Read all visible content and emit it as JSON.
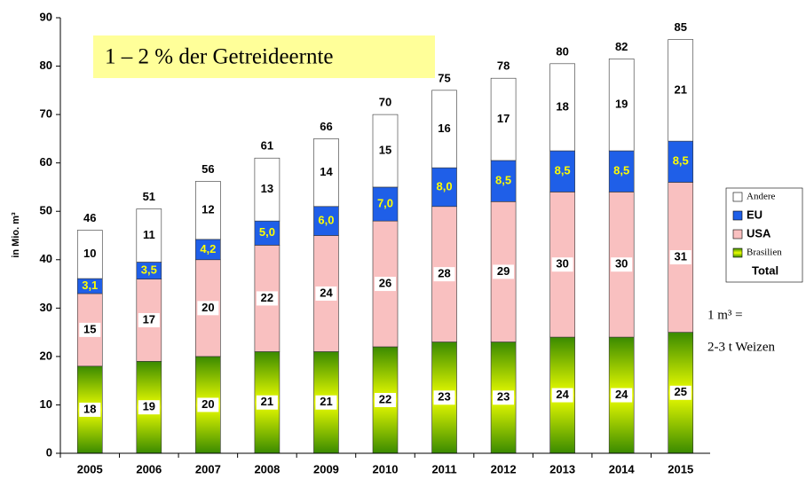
{
  "chart_data": {
    "type": "stacked_bar",
    "y_label": "in Mio. m³",
    "annotation": "1 – 2 % der Getreideernte",
    "note_lines": [
      "1 m³ =",
      "2-3 t Weizen"
    ],
    "categories": [
      "2005",
      "2006",
      "2007",
      "2008",
      "2009",
      "2010",
      "2011",
      "2012",
      "2013",
      "2014",
      "2015"
    ],
    "series": [
      {
        "name": "Brasilien",
        "color": "#3a8a00",
        "values": [
          18,
          19,
          20,
          21,
          21,
          22,
          23,
          23,
          24,
          24,
          25
        ]
      },
      {
        "name": "USA",
        "color": "#f9c0c0",
        "values": [
          15,
          17,
          20,
          22,
          24,
          26,
          28,
          29,
          30,
          30,
          31
        ]
      },
      {
        "name": "EU",
        "color": "#1f5fe8",
        "label_color": "#ffff00",
        "values": [
          3.1,
          3.5,
          4.2,
          5.0,
          6.0,
          7.0,
          8.0,
          8.5,
          8.5,
          8.5,
          8.5
        ],
        "value_labels": [
          "3,1",
          "3,5",
          "4,2",
          "5,0",
          "6,0",
          "7,0",
          "8,0",
          "8,5",
          "8,5",
          "8,5",
          "8,5"
        ]
      },
      {
        "name": "Andere",
        "color": "#ffffff",
        "values": [
          10,
          11,
          12,
          13,
          14,
          15,
          16,
          17,
          18,
          19,
          21
        ]
      },
      {
        "name": "Total",
        "values": [
          46,
          51,
          56,
          61,
          66,
          70,
          75,
          78,
          80,
          82,
          85
        ]
      }
    ],
    "ylim": [
      0,
      90
    ],
    "yticks": [
      0,
      10,
      20,
      30,
      40,
      50,
      60,
      70,
      80,
      90
    ]
  }
}
